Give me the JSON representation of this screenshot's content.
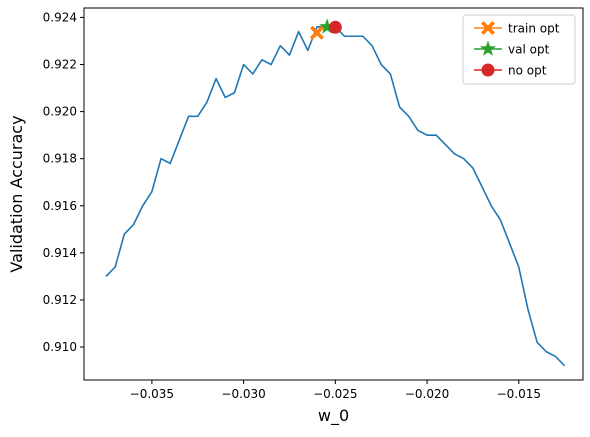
{
  "chart_data": {
    "type": "line",
    "title": "",
    "xlabel": "w_0",
    "ylabel": "Validation Accuracy",
    "xlim": [
      -0.0387,
      -0.0115
    ],
    "ylim": [
      0.9086,
      0.9244
    ],
    "x_ticks": [
      -0.035,
      -0.03,
      -0.025,
      -0.02,
      -0.015
    ],
    "x_tick_labels": [
      "−0.035",
      "−0.030",
      "−0.025",
      "−0.020",
      "−0.015"
    ],
    "y_ticks": [
      0.91,
      0.912,
      0.914,
      0.916,
      0.918,
      0.92,
      0.922,
      0.924
    ],
    "y_tick_labels": [
      "0.910",
      "0.912",
      "0.914",
      "0.916",
      "0.918",
      "0.920",
      "0.922",
      "0.924"
    ],
    "grid": false,
    "legend_position": "top-right",
    "series": [
      {
        "color": "#1f77b4",
        "x": [
          -0.0375,
          -0.037,
          -0.0365,
          -0.036,
          -0.0355,
          -0.035,
          -0.0345,
          -0.034,
          -0.0335,
          -0.033,
          -0.0325,
          -0.032,
          -0.0315,
          -0.031,
          -0.0305,
          -0.03,
          -0.0295,
          -0.029,
          -0.0285,
          -0.028,
          -0.0275,
          -0.027,
          -0.0265,
          -0.026,
          -0.0255,
          -0.025,
          -0.0245,
          -0.024,
          -0.0235,
          -0.023,
          -0.0225,
          -0.022,
          -0.0215,
          -0.021,
          -0.0205,
          -0.02,
          -0.0195,
          -0.019,
          -0.0185,
          -0.018,
          -0.0175,
          -0.017,
          -0.0165,
          -0.016,
          -0.0155,
          -0.015,
          -0.0145,
          -0.014,
          -0.0135,
          -0.013,
          -0.0125
        ],
        "y": [
          0.913,
          0.9134,
          0.9148,
          0.9152,
          0.916,
          0.9166,
          0.918,
          0.9178,
          0.9188,
          0.9198,
          0.9198,
          0.9204,
          0.9214,
          0.9206,
          0.9208,
          0.922,
          0.9216,
          0.9222,
          0.922,
          0.9228,
          0.9224,
          0.9234,
          0.9226,
          0.9236,
          0.9236,
          0.9236,
          0.9232,
          0.9232,
          0.9232,
          0.9228,
          0.922,
          0.9216,
          0.9202,
          0.9198,
          0.9192,
          0.919,
          0.919,
          0.9186,
          0.9182,
          0.918,
          0.9176,
          0.9168,
          0.916,
          0.9154,
          0.9144,
          0.9134,
          0.9116,
          0.9102,
          0.9098,
          0.9096,
          0.9092
        ]
      }
    ],
    "markers": [
      {
        "name": "train opt",
        "x": -0.026,
        "y": 0.92335,
        "color": "#ff7f0e",
        "shape": "X"
      },
      {
        "name": "val opt",
        "x": -0.02545,
        "y": 0.9236,
        "color": "#2ca02c",
        "shape": "star"
      },
      {
        "name": "no opt",
        "x": -0.025,
        "y": 0.92358,
        "color": "#d62728",
        "shape": "circle"
      }
    ]
  }
}
